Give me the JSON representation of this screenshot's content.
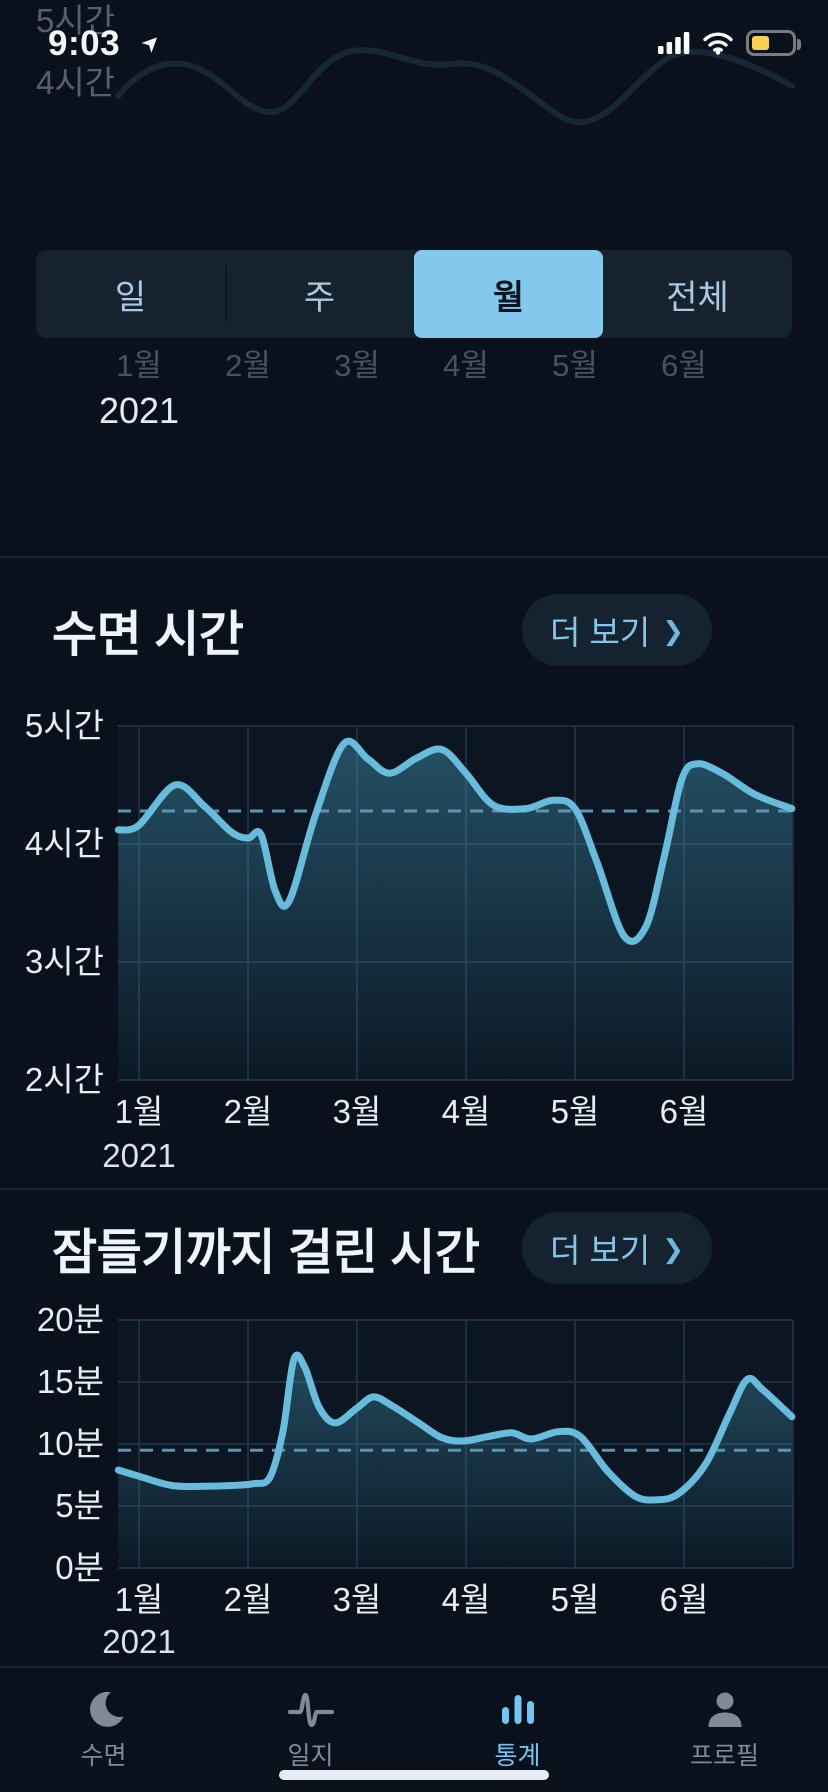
{
  "status_bar": {
    "time": "9:03"
  },
  "top_remnant": {
    "y_label_top": "5시간",
    "y_label_mid": "4시간",
    "months": [
      "1월",
      "2월",
      "3월",
      "4월",
      "5월",
      "6월"
    ],
    "year": "2021"
  },
  "segmented_control": {
    "items": [
      {
        "label": "일"
      },
      {
        "label": "주"
      },
      {
        "label": "월"
      },
      {
        "label": "전체"
      }
    ],
    "selected_index": 2,
    "selected_label": "월"
  },
  "sections": [
    {
      "title": "수면 시간",
      "more_label": "더 보기",
      "chevron": "❯"
    },
    {
      "title": "잠들기까지 걸린 시간",
      "more_label": "더 보기",
      "chevron": "❯"
    }
  ],
  "chart_data": [
    {
      "name": "sleep-duration-chart",
      "type": "area",
      "title": "수면 시간",
      "ylim": [
        2,
        5
      ],
      "y_ticks": [
        {
          "label": "5시간",
          "value": 5
        },
        {
          "label": "4시간",
          "value": 4
        },
        {
          "label": "3시간",
          "value": 3
        },
        {
          "label": "2시간",
          "value": 2
        }
      ],
      "x_tick_labels": [
        "1월",
        "2월",
        "3월",
        "4월",
        "5월",
        "6월"
      ],
      "year_label": "2021",
      "x_note": "x in month units, 0 = 1월 2021",
      "average_value": 4.28,
      "points": [
        [
          -0.19,
          4.12
        ],
        [
          0,
          4.16
        ],
        [
          0.33,
          4.5
        ],
        [
          0.6,
          4.32
        ],
        [
          0.85,
          4.1
        ],
        [
          1,
          4.05
        ],
        [
          1.12,
          4.08
        ],
        [
          1.25,
          3.6
        ],
        [
          1.38,
          3.52
        ],
        [
          1.62,
          4.25
        ],
        [
          1.88,
          4.85
        ],
        [
          2.1,
          4.72
        ],
        [
          2.3,
          4.6
        ],
        [
          2.55,
          4.73
        ],
        [
          2.78,
          4.8
        ],
        [
          3,
          4.6
        ],
        [
          3.25,
          4.33
        ],
        [
          3.55,
          4.3
        ],
        [
          3.8,
          4.37
        ],
        [
          4,
          4.3
        ],
        [
          4.2,
          3.85
        ],
        [
          4.45,
          3.22
        ],
        [
          4.65,
          3.3
        ],
        [
          4.82,
          3.9
        ],
        [
          4.98,
          4.55
        ],
        [
          5.12,
          4.68
        ],
        [
          5.35,
          4.6
        ],
        [
          5.65,
          4.42
        ],
        [
          5.99,
          4.3
        ]
      ]
    },
    {
      "name": "time-to-fall-asleep-chart",
      "type": "area",
      "title": "잠들기까지 걸린 시간",
      "ylim": [
        0,
        20
      ],
      "y_ticks": [
        {
          "label": "20분",
          "value": 20
        },
        {
          "label": "15분",
          "value": 15
        },
        {
          "label": "10분",
          "value": 10
        },
        {
          "label": "5분",
          "value": 5
        },
        {
          "label": "0분",
          "value": 0
        }
      ],
      "x_tick_labels": [
        "1월",
        "2월",
        "3월",
        "4월",
        "5월",
        "6월"
      ],
      "year_label": "2021",
      "x_note": "x in month units, 0 = 1월 2021",
      "average_value": 9.5,
      "points": [
        [
          -0.19,
          7.9
        ],
        [
          0,
          7.4
        ],
        [
          0.3,
          6.65
        ],
        [
          0.6,
          6.6
        ],
        [
          0.85,
          6.65
        ],
        [
          1.05,
          6.8
        ],
        [
          1.2,
          7.3
        ],
        [
          1.32,
          11
        ],
        [
          1.42,
          16.8
        ],
        [
          1.52,
          16.2
        ],
        [
          1.65,
          13
        ],
        [
          1.8,
          11.7
        ],
        [
          2,
          12.9
        ],
        [
          2.15,
          13.8
        ],
        [
          2.32,
          13.1
        ],
        [
          2.55,
          11.8
        ],
        [
          2.78,
          10.5
        ],
        [
          2.98,
          10.25
        ],
        [
          3.2,
          10.6
        ],
        [
          3.42,
          10.9
        ],
        [
          3.6,
          10.4
        ],
        [
          3.85,
          11
        ],
        [
          4.05,
          10.6
        ],
        [
          4.3,
          7.8
        ],
        [
          4.55,
          5.8
        ],
        [
          4.75,
          5.5
        ],
        [
          4.95,
          6
        ],
        [
          5.2,
          8.4
        ],
        [
          5.42,
          12.5
        ],
        [
          5.58,
          15.2
        ],
        [
          5.72,
          14.4
        ],
        [
          5.99,
          12.2
        ]
      ]
    }
  ],
  "tab_bar": {
    "items": [
      {
        "label": "수면",
        "icon": "moon-icon"
      },
      {
        "label": "일지",
        "icon": "waveform-icon"
      },
      {
        "label": "통계",
        "icon": "bar-chart-icon"
      },
      {
        "label": "프로필",
        "icon": "person-icon"
      }
    ],
    "active_index": 2,
    "active_label": "통계"
  },
  "colors": {
    "background": "#0a111c",
    "accent_blue": "#6fc6ee",
    "segment_selected_bg": "#85c8ee",
    "chart_line": "#67bcdc",
    "average_line": "#5d94b2",
    "battery_low_power": "#f6d14b"
  }
}
